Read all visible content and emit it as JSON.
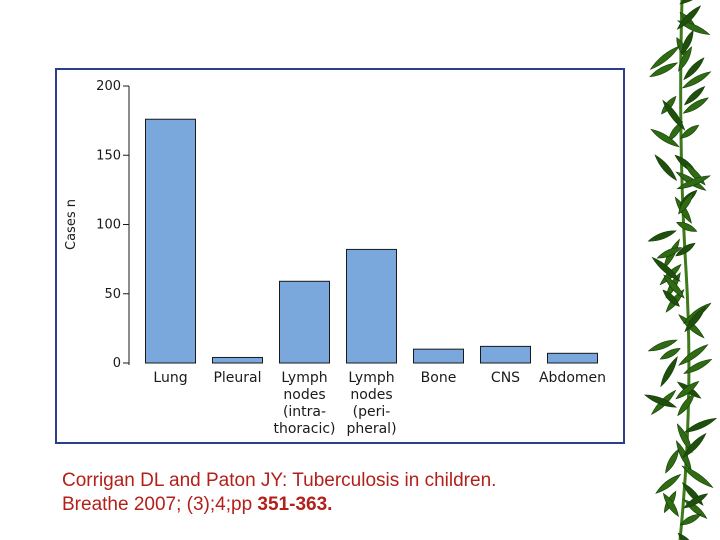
{
  "chart_data": {
    "type": "bar",
    "ylabel": "Cases n",
    "ylim": [
      0,
      200
    ],
    "yticks": [
      0,
      50,
      100,
      150,
      200
    ],
    "bar_color": "#7aa8dc",
    "bar_edge_color": "#1a1a1a",
    "categories": [
      [
        "Lung"
      ],
      [
        "Pleural"
      ],
      [
        "Lymph",
        "nodes",
        "(intra-",
        "thoracic)"
      ],
      [
        "Lymph",
        "nodes",
        "(peri-",
        "pheral)"
      ],
      [
        "Bone"
      ],
      [
        "CNS"
      ],
      [
        "Abdomen"
      ]
    ],
    "values": [
      176,
      4,
      59,
      82,
      10,
      12,
      7
    ],
    "grid": false,
    "legend": "none"
  },
  "citation": {
    "line1": "Corrigan DL and Paton JY: Tuberculosis in children.",
    "line2_prefix": "Breathe 2007; (3);4;pp ",
    "line2_pages": "351-363."
  },
  "colors": {
    "frame_border": "#2b3f8c",
    "citation_text": "#b3201a",
    "bamboo_leaf": "#2e6b12"
  },
  "decoration": {
    "right_edge_icon": "bamboo-leaves-icon"
  }
}
